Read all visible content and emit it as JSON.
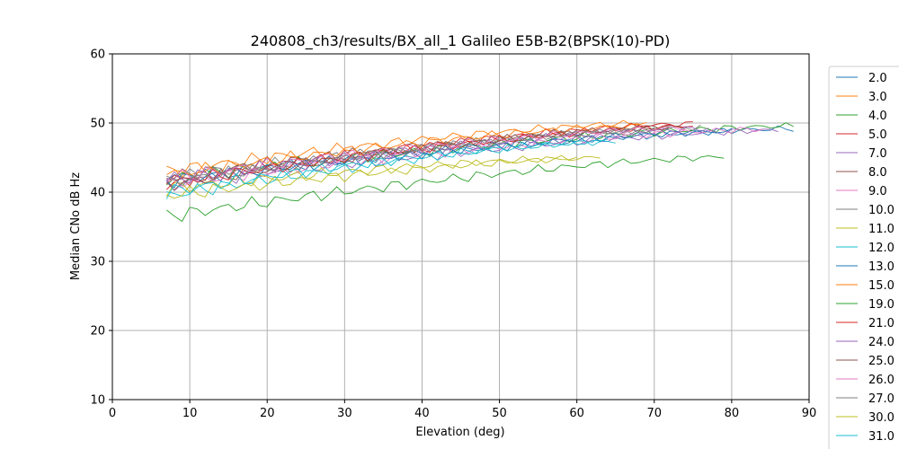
{
  "chart_data": {
    "type": "line",
    "title": "240808_ch3/results/BX_all_1 Galileo E5B-B2(BPSK(10)-PD)",
    "xlabel": "Elevation (deg)",
    "ylabel": "Median CNo dB Hz",
    "xlim": [
      0,
      90
    ],
    "ylim": [
      10,
      60
    ],
    "xticks": [
      "0",
      "10",
      "20",
      "30",
      "40",
      "50",
      "60",
      "70",
      "80",
      "90"
    ],
    "yticks": [
      "10",
      "20",
      "30",
      "40",
      "50",
      "60"
    ],
    "grid": true,
    "legend_position": "right",
    "series": [
      {
        "name": "2.0",
        "color": "#1f77b4",
        "x": [
          7,
          88
        ],
        "y": [
          41.8,
          49.2
        ]
      },
      {
        "name": "3.0",
        "color": "#ff7f0e",
        "x": [
          7,
          69
        ],
        "y": [
          43.0,
          50.0
        ]
      },
      {
        "name": "4.0",
        "color": "#2ca02c",
        "x": [
          7,
          88
        ],
        "y": [
          42.0,
          49.6
        ]
      },
      {
        "name": "5.0",
        "color": "#d62728",
        "x": [
          7,
          75
        ],
        "y": [
          41.5,
          49.9
        ]
      },
      {
        "name": "7.0",
        "color": "#9467bd",
        "x": [
          7,
          86
        ],
        "y": [
          41.0,
          49.0
        ]
      },
      {
        "name": "8.0",
        "color": "#8c564b",
        "x": [
          7,
          74
        ],
        "y": [
          42.2,
          49.5
        ]
      },
      {
        "name": "9.0",
        "color": "#e377c2",
        "x": [
          7,
          84
        ],
        "y": [
          41.2,
          49.1
        ]
      },
      {
        "name": "10.0",
        "color": "#7f7f7f",
        "x": [
          7,
          76
        ],
        "y": [
          42.0,
          49.4
        ]
      },
      {
        "name": "11.0",
        "color": "#bcbd22",
        "x": [
          7,
          60
        ],
        "y": [
          40.5,
          44.9
        ]
      },
      {
        "name": "12.0",
        "color": "#17becf",
        "x": [
          7,
          65
        ],
        "y": [
          39.5,
          47.4
        ]
      },
      {
        "name": "13.0",
        "color": "#1f77b4",
        "x": [
          7,
          80
        ],
        "y": [
          41.6,
          48.8
        ]
      },
      {
        "name": "15.0",
        "color": "#ff7f0e",
        "x": [
          7,
          68
        ],
        "y": [
          42.5,
          49.6
        ]
      },
      {
        "name": "19.0",
        "color": "#2ca02c",
        "x": [
          7,
          79
        ],
        "y": [
          36.5,
          45.1
        ]
      },
      {
        "name": "21.0",
        "color": "#d62728",
        "x": [
          7,
          75
        ],
        "y": [
          41.3,
          49.6
        ]
      },
      {
        "name": "24.0",
        "color": "#9467bd",
        "x": [
          7,
          77
        ],
        "y": [
          41.8,
          49.2
        ]
      },
      {
        "name": "25.0",
        "color": "#8c564b",
        "x": [
          7,
          72
        ],
        "y": [
          41.0,
          49.4
        ]
      },
      {
        "name": "26.0",
        "color": "#e377c2",
        "x": [
          7,
          74
        ],
        "y": [
          42.0,
          49.3
        ]
      },
      {
        "name": "27.0",
        "color": "#7f7f7f",
        "x": [
          7,
          70
        ],
        "y": [
          41.4,
          49.0
        ]
      },
      {
        "name": "30.0",
        "color": "#bcbd22",
        "x": [
          7,
          63
        ],
        "y": [
          39.5,
          45.0
        ]
      },
      {
        "name": "31.0",
        "color": "#17becf",
        "x": [
          7,
          64
        ],
        "y": [
          40.0,
          47.3
        ]
      }
    ]
  }
}
